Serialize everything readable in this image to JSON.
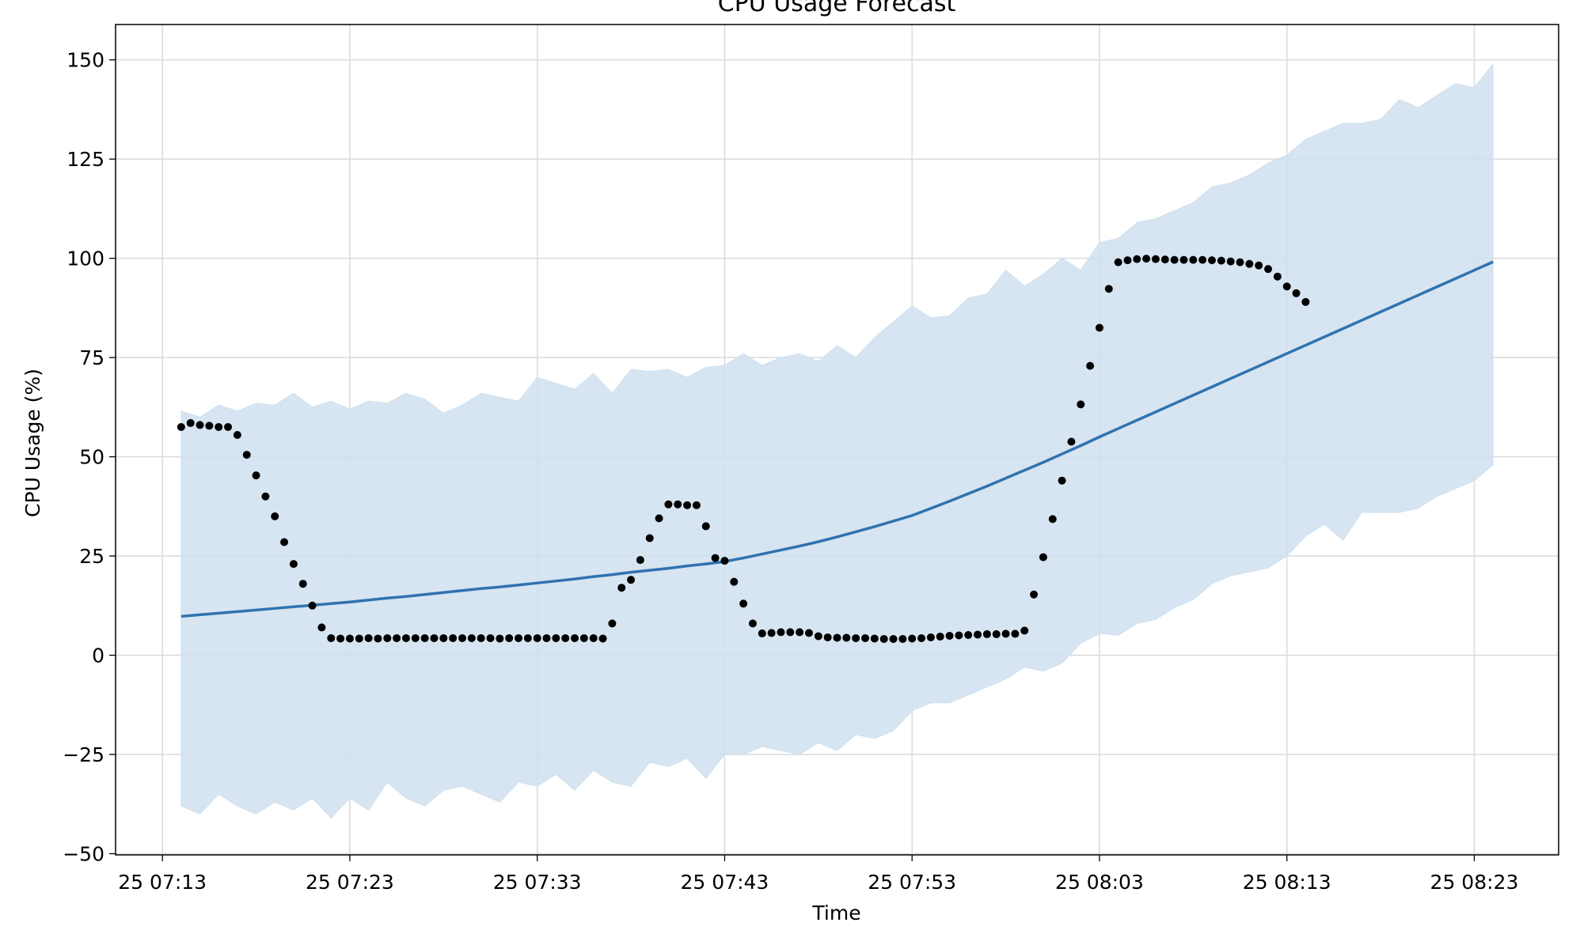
{
  "chart_data": {
    "type": "line",
    "title": "CPU Usage Forecast",
    "xlabel": "Time",
    "ylabel": "CPU Usage (%)",
    "grid": true,
    "xlim": [
      "25 07:10:30",
      "25 08:27:30"
    ],
    "xticks": [
      {
        "value": "25 07:13:00",
        "label": "25 07:13"
      },
      {
        "value": "25 07:23:00",
        "label": "25 07:23"
      },
      {
        "value": "25 07:33:00",
        "label": "25 07:33"
      },
      {
        "value": "25 07:43:00",
        "label": "25 07:43"
      },
      {
        "value": "25 07:53:00",
        "label": "25 07:53"
      },
      {
        "value": "25 08:03:00",
        "label": "25 08:03"
      },
      {
        "value": "25 08:13:00",
        "label": "25 08:13"
      },
      {
        "value": "25 08:23:00",
        "label": "25 08:23"
      }
    ],
    "ylim": [
      -50.3,
      158.9
    ],
    "yticks": [
      {
        "value": -50,
        "label": "−50"
      },
      {
        "value": -25,
        "label": "−25"
      },
      0,
      25,
      50,
      75,
      100,
      125,
      150
    ],
    "series": [
      {
        "type": "scatter",
        "color": "#000000",
        "x": [
          "25 07:14:00",
          "25 07:14:30",
          "25 07:15:00",
          "25 07:15:30",
          "25 07:16:00",
          "25 07:16:30",
          "25 07:17:00",
          "25 07:17:30",
          "25 07:18:00",
          "25 07:18:30",
          "25 07:19:00",
          "25 07:19:30",
          "25 07:20:00",
          "25 07:20:30",
          "25 07:21:00",
          "25 07:21:30",
          "25 07:22:00",
          "25 07:22:30",
          "25 07:23:00",
          "25 07:23:30",
          "25 07:24:00",
          "25 07:24:30",
          "25 07:25:00",
          "25 07:25:30",
          "25 07:26:00",
          "25 07:26:30",
          "25 07:27:00",
          "25 07:27:30",
          "25 07:28:00",
          "25 07:28:30",
          "25 07:29:00",
          "25 07:29:30",
          "25 07:30:00",
          "25 07:30:30",
          "25 07:31:00",
          "25 07:31:30",
          "25 07:32:00",
          "25 07:32:30",
          "25 07:33:00",
          "25 07:33:30",
          "25 07:34:00",
          "25 07:34:30",
          "25 07:35:00",
          "25 07:35:30",
          "25 07:36:00",
          "25 07:36:30",
          "25 07:37:00",
          "25 07:37:30",
          "25 07:38:00",
          "25 07:38:30",
          "25 07:39:00",
          "25 07:39:30",
          "25 07:40:00",
          "25 07:40:30",
          "25 07:41:00",
          "25 07:41:30",
          "25 07:42:00",
          "25 07:42:30",
          "25 07:43:00",
          "25 07:43:30",
          "25 07:44:00",
          "25 07:44:30",
          "25 07:45:00",
          "25 07:45:30",
          "25 07:46:00",
          "25 07:46:30",
          "25 07:47:00",
          "25 07:47:30",
          "25 07:48:00",
          "25 07:48:30",
          "25 07:49:00",
          "25 07:49:30",
          "25 07:50:00",
          "25 07:50:30",
          "25 07:51:00",
          "25 07:51:30",
          "25 07:52:00",
          "25 07:52:30",
          "25 07:53:00",
          "25 07:53:30",
          "25 07:54:00",
          "25 07:54:30",
          "25 07:55:00",
          "25 07:55:30",
          "25 07:56:00",
          "25 07:56:30",
          "25 07:57:00",
          "25 07:57:30",
          "25 07:58:00",
          "25 07:58:30",
          "25 07:59:00",
          "25 07:59:30",
          "25 08:00:00",
          "25 08:00:30",
          "25 08:01:00",
          "25 08:01:30",
          "25 08:02:00",
          "25 08:02:30",
          "25 08:03:00",
          "25 08:03:30",
          "25 08:04:00",
          "25 08:04:30",
          "25 08:05:00",
          "25 08:05:30",
          "25 08:06:00",
          "25 08:06:30",
          "25 08:07:00",
          "25 08:07:30",
          "25 08:08:00",
          "25 08:08:30",
          "25 08:09:00",
          "25 08:09:30",
          "25 08:10:00",
          "25 08:10:30",
          "25 08:11:00",
          "25 08:11:30",
          "25 08:12:00",
          "25 08:12:30",
          "25 08:13:00",
          "25 08:13:30",
          "25 08:14:00"
        ],
        "values": [
          57.5,
          58.5,
          58,
          57.8,
          57.5,
          57.5,
          55.5,
          50.5,
          45.3,
          40,
          35,
          28.5,
          23,
          18,
          12.5,
          7,
          4.3,
          4.2,
          4.2,
          4.2,
          4.3,
          4.2,
          4.3,
          4.3,
          4.3,
          4.3,
          4.3,
          4.3,
          4.3,
          4.3,
          4.3,
          4.3,
          4.3,
          4.3,
          4.2,
          4.3,
          4.3,
          4.3,
          4.3,
          4.3,
          4.3,
          4.3,
          4.3,
          4.3,
          4.3,
          4.2,
          8,
          17,
          19,
          24,
          29.5,
          34.5,
          38,
          38,
          37.8,
          37.8,
          32.5,
          24.5,
          23.8,
          18.5,
          13,
          8,
          5.5,
          5.6,
          5.8,
          5.8,
          5.8,
          5.6,
          4.8,
          4.5,
          4.4,
          4.4,
          4.3,
          4.3,
          4.2,
          4.1,
          4.1,
          4.1,
          4.2,
          4.3,
          4.5,
          4.7,
          4.9,
          5,
          5.1,
          5.2,
          5.3,
          5.3,
          5.4,
          5.4,
          6.2,
          15.3,
          24.7,
          34.3,
          44,
          53.8,
          63.2,
          72.9,
          82.5,
          92.3,
          99,
          99.5,
          99.8,
          99.9,
          99.8,
          99.7,
          99.6,
          99.6,
          99.6,
          99.6,
          99.5,
          99.4,
          99.2,
          99,
          98.6,
          98.2,
          97.3,
          95.4,
          92.9,
          91.2,
          89
        ]
      },
      {
        "type": "line",
        "color": "#3072b0",
        "band_color": "#cfe0ee",
        "x": [
          "25 07:14:00",
          "25 07:15:00",
          "25 07:16:00",
          "25 07:17:00",
          "25 07:18:00",
          "25 07:19:00",
          "25 07:20:00",
          "25 07:21:00",
          "25 07:22:00",
          "25 07:23:00",
          "25 07:24:00",
          "25 07:25:00",
          "25 07:26:00",
          "25 07:27:00",
          "25 07:28:00",
          "25 07:29:00",
          "25 07:30:00",
          "25 07:31:00",
          "25 07:32:00",
          "25 07:33:00",
          "25 07:34:00",
          "25 07:35:00",
          "25 07:36:00",
          "25 07:37:00",
          "25 07:38:00",
          "25 07:39:00",
          "25 07:40:00",
          "25 07:41:00",
          "25 07:42:00",
          "25 07:43:00",
          "25 07:44:00",
          "25 07:45:00",
          "25 07:46:00",
          "25 07:47:00",
          "25 07:48:00",
          "25 07:49:00",
          "25 07:50:00",
          "25 07:51:00",
          "25 07:52:00",
          "25 07:53:00",
          "25 07:54:00",
          "25 07:55:00",
          "25 07:56:00",
          "25 07:57:00",
          "25 07:58:00",
          "25 07:59:00",
          "25 08:00:00",
          "25 08:01:00",
          "25 08:02:00",
          "25 08:03:00",
          "25 08:04:00",
          "25 08:05:00",
          "25 08:06:00",
          "25 08:07:00",
          "25 08:08:00",
          "25 08:09:00",
          "25 08:10:00",
          "25 08:11:00",
          "25 08:12:00",
          "25 08:13:00",
          "25 08:14:00",
          "25 08:15:00",
          "25 08:16:00",
          "25 08:17:00",
          "25 08:18:00",
          "25 08:19:00",
          "25 08:20:00",
          "25 08:21:00",
          "25 08:22:00",
          "25 08:23:00",
          "25 08:24:00"
        ],
        "values": [
          9.8,
          10.2,
          10.6,
          11.0,
          11.4,
          11.8,
          12.2,
          12.6,
          13.0,
          13.4,
          13.9,
          14.4,
          14.8,
          15.3,
          15.8,
          16.3,
          16.8,
          17.2,
          17.7,
          18.2,
          18.7,
          19.2,
          19.8,
          20.3,
          20.9,
          21.4,
          21.9,
          22.5,
          23.0,
          23.6,
          24.5,
          25.5,
          26.5,
          27.5,
          28.6,
          29.8,
          31.1,
          32.4,
          33.8,
          35.2,
          37.0,
          38.8,
          40.7,
          42.6,
          44.6,
          46.6,
          48.6,
          50.7,
          52.8,
          55.0,
          57.1,
          59.2,
          61.3,
          63.4,
          65.5,
          67.6,
          69.7,
          71.8,
          73.9,
          76.0,
          78.1,
          80.2,
          82.3,
          84.4,
          86.5,
          88.6,
          90.7,
          92.8,
          94.9,
          97.0,
          99.1
        ],
        "band_upper": [
          61.5,
          60,
          63,
          61.5,
          63.5,
          63,
          66,
          62.5,
          64,
          62,
          64,
          63.5,
          66,
          64.5,
          61,
          63,
          66,
          65,
          64,
          70,
          68.5,
          67,
          71,
          66,
          72,
          71.5,
          72,
          70,
          72.5,
          73,
          76,
          73,
          75,
          76,
          74,
          78,
          75,
          80,
          84,
          88,
          85,
          85.5,
          90,
          91,
          97,
          93,
          96,
          100,
          97,
          104,
          105,
          109,
          110,
          112,
          114,
          118,
          119,
          121,
          124,
          126,
          130,
          132,
          134,
          134,
          135,
          140,
          138,
          141,
          144,
          143,
          149
        ],
        "band_lower": [
          -38,
          -40,
          -35,
          -38,
          -40,
          -37,
          -39,
          -36,
          -41,
          -36,
          -39,
          -32,
          -36,
          -38,
          -34,
          -33,
          -35,
          -37,
          -32,
          -33,
          -30,
          -34,
          -29,
          -32,
          -33,
          -27,
          -28,
          -26,
          -31,
          -25,
          -25,
          -23,
          -24,
          -25,
          -22,
          -24,
          -20,
          -21,
          -19,
          -14,
          -12,
          -12,
          -10,
          -8,
          -6,
          -3,
          -4,
          -2,
          3,
          5.5,
          5,
          8,
          9,
          12,
          14,
          18,
          20,
          21,
          22,
          25,
          30,
          33,
          29,
          36,
          36,
          36,
          37,
          40,
          42,
          44,
          48
        ]
      }
    ]
  }
}
